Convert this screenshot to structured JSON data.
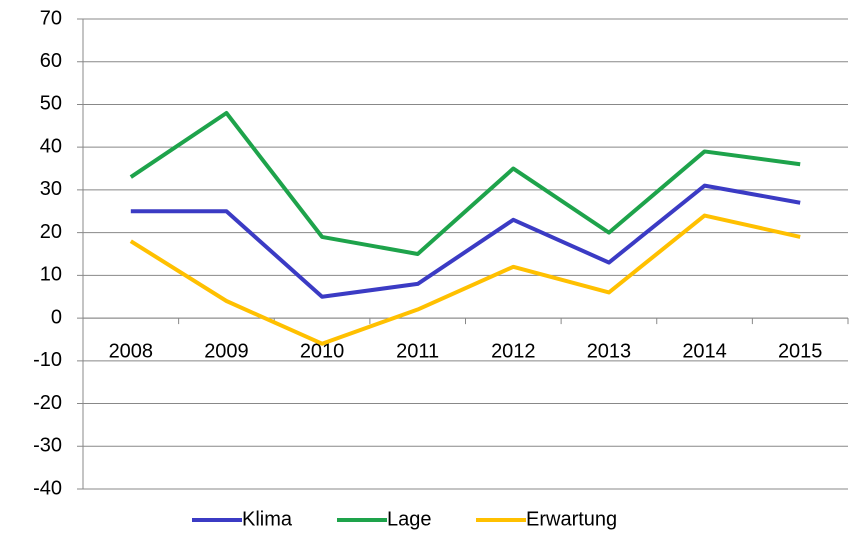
{
  "chart_data": {
    "type": "line",
    "categories": [
      "2008",
      "2009",
      "2010",
      "2011",
      "2012",
      "2013",
      "2014",
      "2015"
    ],
    "series": [
      {
        "name": "Klima",
        "color": "#3b3bc4",
        "values": [
          25,
          25,
          5,
          8,
          23,
          13,
          31,
          27
        ]
      },
      {
        "name": "Lage",
        "color": "#1ea34b",
        "values": [
          33,
          48,
          19,
          15,
          35,
          20,
          39,
          36
        ]
      },
      {
        "name": "Erwartung",
        "color": "#ffc000",
        "values": [
          18,
          4,
          -6,
          2,
          12,
          6,
          24,
          19
        ]
      }
    ],
    "ylim": [
      -40,
      70
    ],
    "yticks": [
      -40,
      -30,
      -20,
      -10,
      0,
      10,
      20,
      30,
      40,
      50,
      60,
      70
    ],
    "grid": true,
    "legend": "bottom"
  }
}
